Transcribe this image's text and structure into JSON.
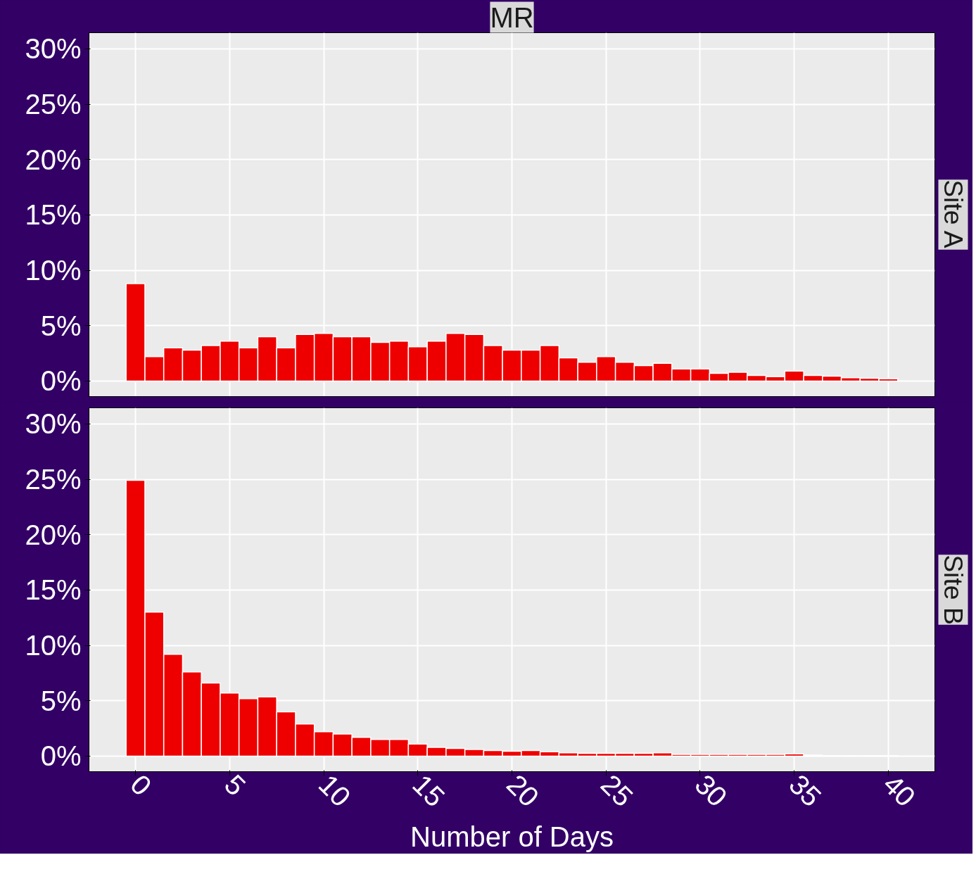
{
  "chart_data": [
    {
      "type": "histogram",
      "title": "MR",
      "y2label": "Site A",
      "color": "#ee0000",
      "grid": true,
      "tick_labels": "y",
      "bins": [
        -0.5,
        0.5,
        1.5,
        2.5,
        3.5,
        4.5,
        5.5,
        6.5,
        7.5,
        8.5,
        9.5,
        10.5,
        11.5,
        12.5,
        13.5,
        14.5,
        15.5,
        16.5,
        17.5,
        18.5,
        19.5,
        20.5,
        21.5,
        22.5,
        23.5,
        24.5,
        25.5,
        26.5,
        27.5,
        28.5,
        29.5,
        30.5,
        31.5,
        32.5,
        33.5,
        34.5,
        35.5,
        36.5,
        37.5,
        38.5,
        39.5,
        40.5
      ],
      "values": [
        8.8,
        2.2,
        3.0,
        2.8,
        3.2,
        3.6,
        3.0,
        4.0,
        3.0,
        4.2,
        4.3,
        4.0,
        4.0,
        3.5,
        3.6,
        3.1,
        3.6,
        4.3,
        4.2,
        3.2,
        2.8,
        2.8,
        3.2,
        2.1,
        1.7,
        2.2,
        1.7,
        1.4,
        1.6,
        1.1,
        1.1,
        0.7,
        0.8,
        0.5,
        0.4,
        0.9,
        0.5,
        0.45,
        0.3,
        0.25,
        0.2
      ],
      "xlim": [
        -2.47,
        42.47
      ],
      "xticks": [
        0,
        5,
        10,
        15,
        20,
        25,
        30,
        35,
        40
      ],
      "ylim": [
        -1.4,
        31.45
      ],
      "yticks": [
        {
          "value": 0,
          "label": "0%"
        },
        {
          "value": 5,
          "label": "5%"
        },
        {
          "value": 10,
          "label": "10%"
        },
        {
          "value": 15,
          "label": "15%"
        },
        {
          "value": 20,
          "label": "20%"
        },
        {
          "value": 25,
          "label": "25%"
        },
        {
          "value": 30,
          "label": "30%"
        }
      ]
    },
    {
      "type": "histogram",
      "y2label": "Site B",
      "xlabel": "Number of Days",
      "color": "#ee0000",
      "grid": true,
      "bins": [
        -0.5,
        0.5,
        1.5,
        2.5,
        3.5,
        4.5,
        5.5,
        6.5,
        7.5,
        8.5,
        9.5,
        10.5,
        11.5,
        12.5,
        13.5,
        14.5,
        15.5,
        16.5,
        17.5,
        18.5,
        19.5,
        20.5,
        21.5,
        22.5,
        23.5,
        24.5,
        25.5,
        26.5,
        27.5,
        28.5,
        29.5,
        30.5,
        31.5,
        32.5,
        33.5,
        34.5,
        35.5,
        36.5,
        37.5,
        38.5,
        39.5,
        40.5
      ],
      "values": [
        24.9,
        13.0,
        9.2,
        7.6,
        6.6,
        5.7,
        5.2,
        5.35,
        4.0,
        2.9,
        2.2,
        2.0,
        1.7,
        1.5,
        1.5,
        1.1,
        0.8,
        0.7,
        0.6,
        0.5,
        0.45,
        0.5,
        0.4,
        0.3,
        0.25,
        0.25,
        0.25,
        0.25,
        0.3,
        0.15,
        0.15,
        0.15,
        0.15,
        0.15,
        0.15,
        0.2,
        0.1,
        0.05,
        0.05,
        0.05,
        0.05
      ],
      "xlim": [
        -2.47,
        42.47
      ],
      "xticks": [
        0,
        5,
        10,
        15,
        20,
        25,
        30,
        35,
        40
      ],
      "ylim": [
        -1.4,
        31.45
      ],
      "yticks": [
        {
          "value": 0,
          "label": "0%"
        },
        {
          "value": 5,
          "label": "5%"
        },
        {
          "value": 10,
          "label": "10%"
        },
        {
          "value": 15,
          "label": "15%"
        },
        {
          "value": 20,
          "label": "20%"
        },
        {
          "value": 25,
          "label": "25%"
        },
        {
          "value": 30,
          "label": "30%"
        }
      ]
    }
  ]
}
